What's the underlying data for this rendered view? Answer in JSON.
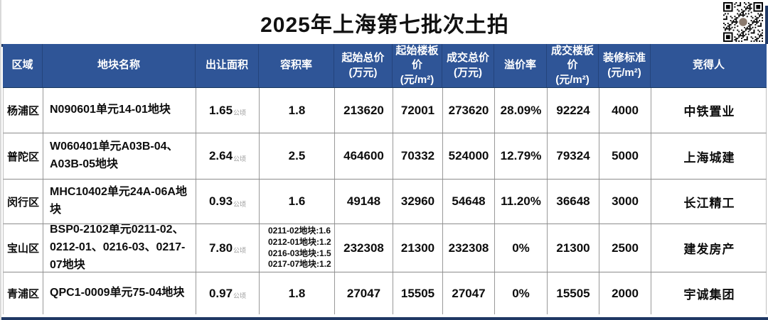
{
  "title": "2025年上海第七批次土拍",
  "qr_label": "qr-code",
  "colors": {
    "header_blue": "#2f5597",
    "frame_navy": "#1f3864",
    "unit_gray": "#999999"
  },
  "table": {
    "area_unit": "公顷",
    "headers": [
      {
        "t": "区域",
        "u": ""
      },
      {
        "t": "地块名称",
        "u": ""
      },
      {
        "t": "出让面积",
        "u": ""
      },
      {
        "t": "容积率",
        "u": ""
      },
      {
        "t": "起始总价",
        "u": "(万元)"
      },
      {
        "t": "起始楼板价",
        "u": "(元/m²)"
      },
      {
        "t": "成交总价",
        "u": "(万元)"
      },
      {
        "t": "溢价率",
        "u": ""
      },
      {
        "t": "成交楼板价",
        "u": "(元/m²)"
      },
      {
        "t": "装修标准",
        "u": "(元/m²)"
      },
      {
        "t": "竞得人",
        "u": ""
      }
    ],
    "rows": [
      {
        "district": "杨浦区",
        "plot_name": "N090601单元14-01地块",
        "area": "1.65",
        "far": [
          "1.8"
        ],
        "start_total": "213620",
        "start_floor": "72001",
        "deal_total": "273620",
        "premium": "28.09%",
        "deal_floor": "92224",
        "decoration": "4000",
        "winner": "中铁置业"
      },
      {
        "district": "普陀区",
        "plot_name": "W060401单元A03B-04、A03B-05地块",
        "area": "2.64",
        "far": [
          "2.5"
        ],
        "start_total": "464600",
        "start_floor": "70332",
        "deal_total": "524000",
        "premium": "12.79%",
        "deal_floor": "79324",
        "decoration": "5000",
        "winner": "上海城建"
      },
      {
        "district": "闵行区",
        "plot_name": "MHC10402单元24A-06A地块",
        "area": "0.93",
        "far": [
          "1.6"
        ],
        "start_total": "49148",
        "start_floor": "32960",
        "deal_total": "54648",
        "premium": "11.20%",
        "deal_floor": "36648",
        "decoration": "3000",
        "winner": "长江精工"
      },
      {
        "district": "宝山区",
        "plot_name": "BSP0-2102单元0211-02、0212-01、0216-03、0217-07地块",
        "area": "7.80",
        "far": [
          "0211-02地块:1.6",
          "0212-01地块:1.2",
          "0216-03地块:1.5",
          "0217-07地块:1.2"
        ],
        "start_total": "232308",
        "start_floor": "21300",
        "deal_total": "232308",
        "premium": "0%",
        "deal_floor": "21300",
        "decoration": "2500",
        "winner": "建发房产"
      },
      {
        "district": "青浦区",
        "plot_name": "QPC1-0009单元75-04地块",
        "area": "0.97",
        "far": [
          "1.8"
        ],
        "start_total": "27047",
        "start_floor": "15505",
        "deal_total": "27047",
        "premium": "0%",
        "deal_floor": "15505",
        "decoration": "2000",
        "winner": "宇诚集团"
      }
    ]
  }
}
